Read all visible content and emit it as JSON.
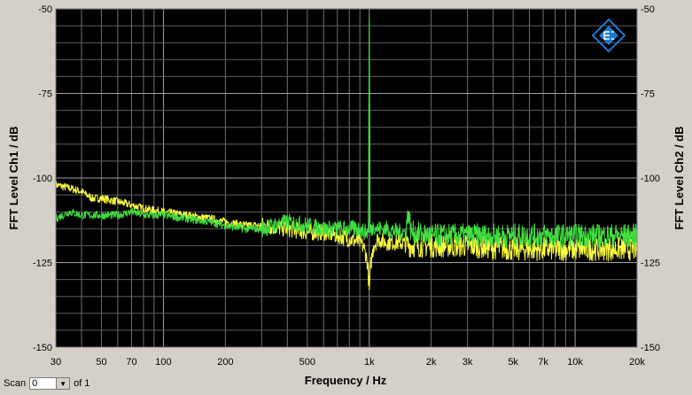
{
  "chart_data": {
    "type": "line",
    "xlabel": "Frequency / Hz",
    "ylabel_left": "FFT Level Ch1 / dB",
    "ylabel_right": "FFT Level Ch2 / dB",
    "x_scale": "log",
    "xlim": [
      30,
      20000
    ],
    "ylim": [
      -150,
      -50
    ],
    "x_ticks": [
      {
        "value": 30,
        "label": "30"
      },
      {
        "value": 50,
        "label": "50"
      },
      {
        "value": 70,
        "label": "70"
      },
      {
        "value": 100,
        "label": "100"
      },
      {
        "value": 200,
        "label": "200"
      },
      {
        "value": 500,
        "label": "500"
      },
      {
        "value": 1000,
        "label": "1k"
      },
      {
        "value": 2000,
        "label": "2k"
      },
      {
        "value": 3000,
        "label": "3k"
      },
      {
        "value": 5000,
        "label": "5k"
      },
      {
        "value": 7000,
        "label": "7k"
      },
      {
        "value": 10000,
        "label": "10k"
      },
      {
        "value": 20000,
        "label": "20k"
      }
    ],
    "y_ticks": [
      {
        "value": -50,
        "label": "-50"
      },
      {
        "value": -75,
        "label": "-75"
      },
      {
        "value": -100,
        "label": "-100"
      },
      {
        "value": -125,
        "label": "-125"
      },
      {
        "value": -150,
        "label": "-150"
      }
    ],
    "grid": true,
    "background": "#000000",
    "series": [
      {
        "color": "#ffff40",
        "x": [
          30,
          35,
          40,
          45,
          50,
          60,
          70,
          80,
          100,
          130,
          170,
          200,
          250,
          300,
          400,
          500,
          600,
          700,
          800,
          900,
          950,
          980,
          1000,
          1020,
          1050,
          1100,
          1200,
          1400,
          1600,
          2000,
          3000,
          5000,
          7000,
          10000,
          15000,
          20000
        ],
        "y": [
          -102,
          -103,
          -104,
          -106,
          -106,
          -107,
          -108,
          -109,
          -110,
          -111,
          -112,
          -113,
          -114,
          -114,
          -115,
          -116,
          -116,
          -117,
          -118,
          -119,
          -121,
          -125,
          -133,
          -125,
          -120,
          -118,
          -119,
          -119,
          -120,
          -120,
          -120,
          -121,
          -121,
          -121,
          -121,
          -121
        ]
      },
      {
        "color": "#40e040",
        "x": [
          30,
          35,
          40,
          50,
          60,
          70,
          80,
          100,
          130,
          170,
          200,
          250,
          300,
          400,
          500,
          600,
          700,
          800,
          900,
          950,
          990,
          995,
          1000,
          1005,
          1010,
          1050,
          1100,
          1200,
          1400,
          1500,
          1550,
          1600,
          2000,
          3000,
          5000,
          7000,
          10000,
          15000,
          20000
        ],
        "y": [
          -112,
          -110,
          -111,
          -111,
          -111,
          -110,
          -111,
          -111,
          -112,
          -113,
          -114,
          -115,
          -115,
          -113,
          -114,
          -115,
          -115,
          -115,
          -115,
          -116,
          -116,
          -80,
          -54,
          -80,
          -116,
          -114,
          -115,
          -115,
          -116,
          -116,
          -110,
          -116,
          -117,
          -117,
          -117,
          -117,
          -117,
          -117,
          -117
        ]
      }
    ]
  },
  "scan": {
    "label": "Scan",
    "value": "0",
    "of_label": "of 1"
  },
  "logo": {
    "icon": "rohde-schwarz-logo-icon",
    "color": "#1e78d2"
  }
}
